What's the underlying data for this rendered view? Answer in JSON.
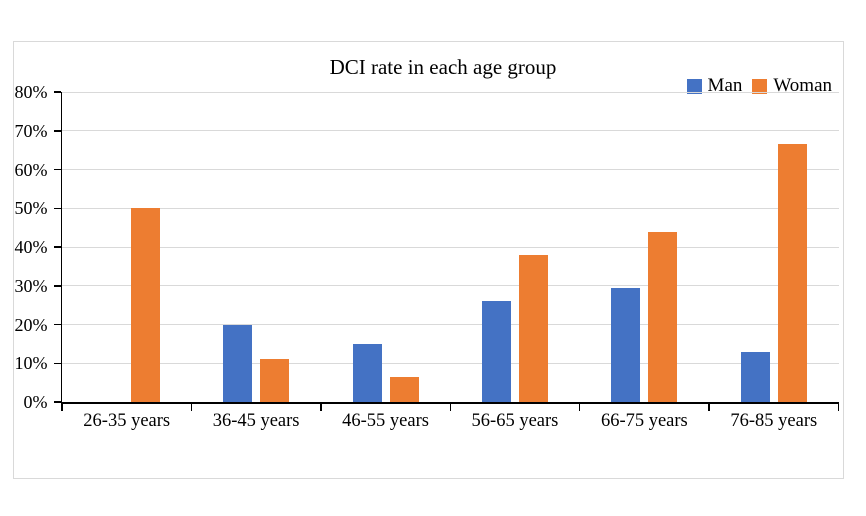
{
  "chart_data": {
    "type": "bar",
    "title": "DCI rate in each age group",
    "categories": [
      "26-35 years",
      "36-45 years",
      "46-55 years",
      "56-65 years",
      "66-75 years",
      "76-85 years"
    ],
    "series": [
      {
        "name": "Man",
        "color": "#4472C4",
        "values": [
          0,
          20,
          15,
          26,
          29.5,
          13
        ]
      },
      {
        "name": "Woman",
        "color": "#ED7D31",
        "values": [
          50,
          11,
          6.5,
          38,
          44,
          66.5
        ]
      }
    ],
    "xlabel": "",
    "ylabel": "",
    "ylim": [
      0,
      80
    ],
    "ytick_step": 10,
    "ytick_labels": [
      "0%",
      "10%",
      "20%",
      "30%",
      "40%",
      "50%",
      "60%",
      "70%",
      "80%"
    ],
    "grid": true,
    "legend_position": "top-right",
    "colors": {
      "gridline": "#d9d9d9",
      "axis": "#000000",
      "frame_border": "#d9d9d9",
      "background": "#ffffff"
    }
  }
}
